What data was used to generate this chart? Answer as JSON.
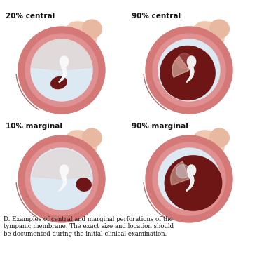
{
  "bg_color": "#ffffff",
  "fig_width": 3.67,
  "fig_height": 3.62,
  "dpi": 100,
  "labels": [
    "20% central",
    "90% central",
    "10% marginal",
    "90% marginal"
  ],
  "label_fontsize": 7.5,
  "caption": "D. Examples of central and marginal perforations of the\ntympanic membrane. The exact size and location should\nbe documented during the initial clinical examination.",
  "caption_fontsize": 6.2,
  "color_outer_ring_edge": "#c06060",
  "color_outer_ring_fill": "#d47878",
  "color_mid_ring": "#e09090",
  "color_membrane_light": "#dce8f2",
  "color_membrane_pink": "#e8c8b8",
  "color_perforation_dark": "#6e1515",
  "color_malleus_white": "#f5f5f5",
  "color_skin_flap1": "#f0c8b0",
  "color_skin_flap2": "#e8b8a0",
  "color_pink_inner": "#d4908888"
}
